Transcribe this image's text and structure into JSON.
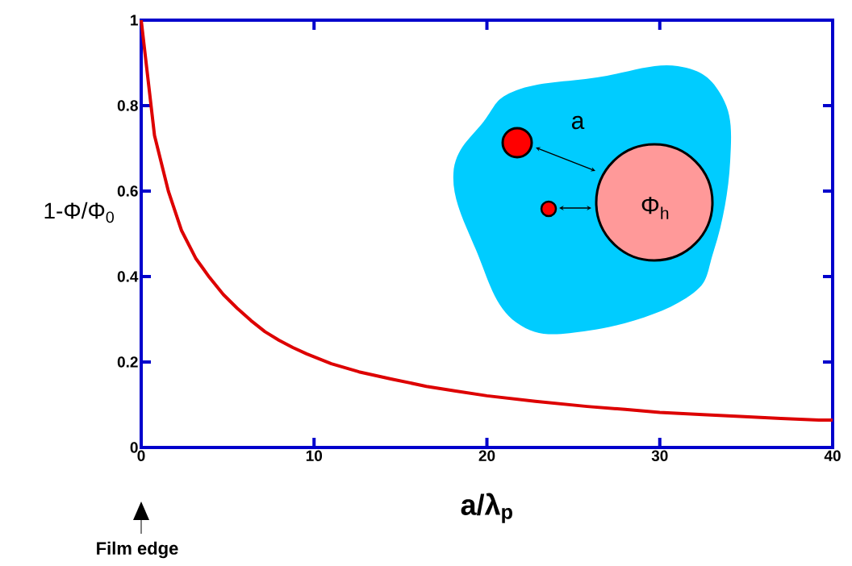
{
  "chart_data": {
    "type": "line",
    "xlabel": "a/λ$_{p}$",
    "ylabel": "1-Φ/Φ$_{0}$",
    "x": [
      0,
      0.77,
      1.57,
      2.33,
      3.15,
      3.95,
      4.75,
      5.55,
      6.35,
      7.16,
      7.97,
      8.77,
      9.57,
      11.0,
      12.6,
      14.5,
      16.5,
      18.2,
      20.0,
      22.8,
      25.8,
      28.0,
      30.0,
      32.5,
      34.9,
      37.0,
      39.2,
      40
    ],
    "series": [
      {
        "color": "#dd0000",
        "values": [
          1,
          0.73,
          0.6,
          0.508,
          0.443,
          0.398,
          0.358,
          0.326,
          0.297,
          0.271,
          0.251,
          0.234,
          0.219,
          0.196,
          0.177,
          0.16,
          0.143,
          0.132,
          0.121,
          0.108,
          0.096,
          0.089,
          0.082,
          0.077,
          0.072,
          0.068,
          0.064,
          0.064
        ]
      }
    ],
    "xlim": [
      0,
      40
    ],
    "ylim": [
      0,
      1
    ],
    "xticks": [
      0,
      10,
      20,
      30,
      40
    ],
    "yticks": [
      0,
      0.2,
      0.4,
      0.6,
      0.8,
      1
    ],
    "annotations": [
      "Film edge",
      "a",
      "Φ$_{h}$"
    ]
  }
}
